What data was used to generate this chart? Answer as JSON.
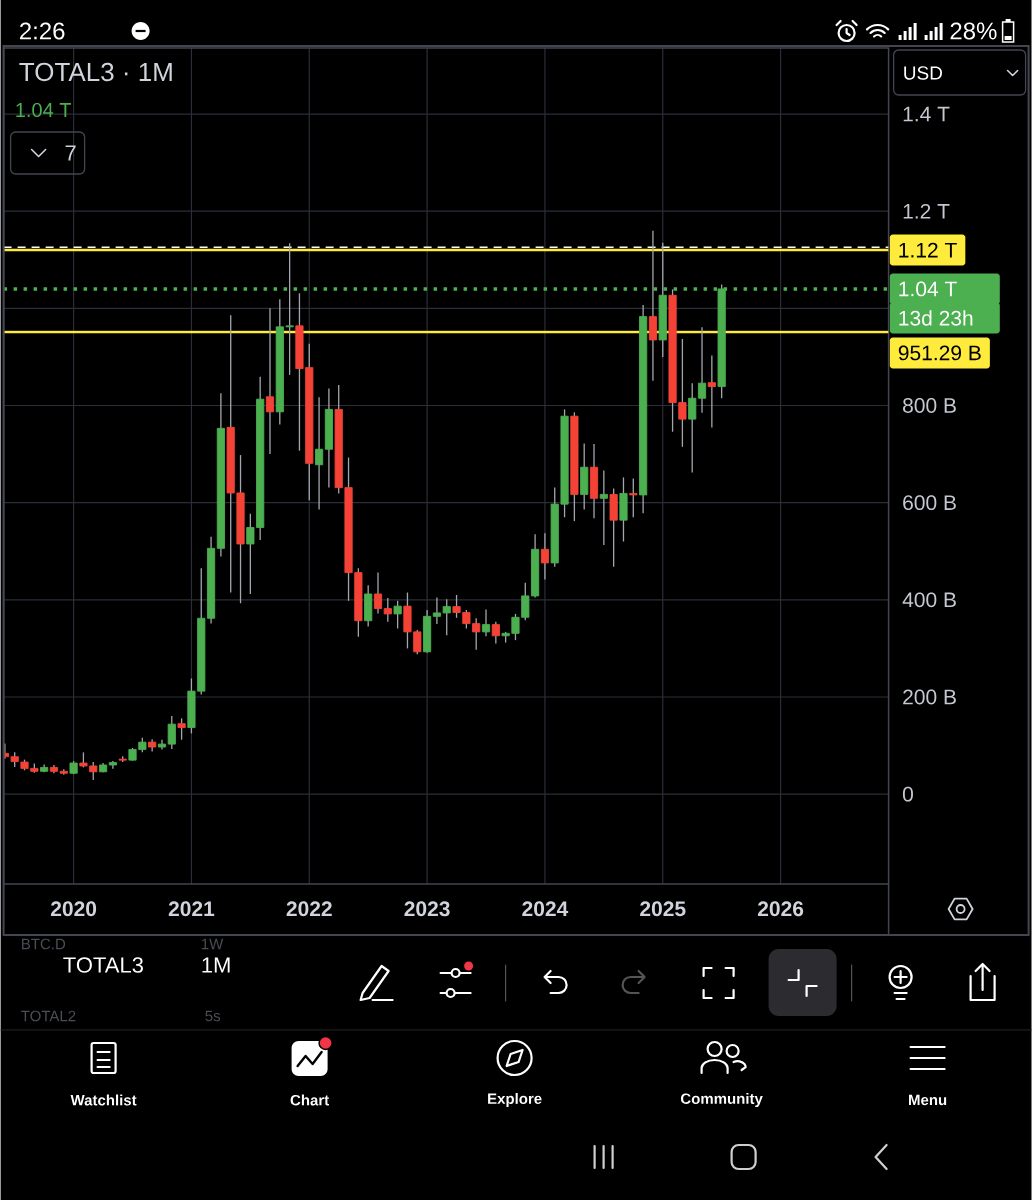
{
  "chart_data": {
    "type": "candlestick",
    "title": "TOTAL3 · 1M",
    "annotations": [
      "2:26",
      "28%",
      "1.04 T",
      "7",
      "USD",
      "13d 23h",
      "BTC.D",
      "1W",
      "TOTAL3",
      "1M",
      "TOTAL2",
      "5s",
      "Watchlist",
      "Chart",
      "Explore",
      "Community",
      "Menu"
    ],
    "x": [
      "2019-06",
      "2019-07",
      "2019-08",
      "2019-09",
      "2019-10",
      "2019-11",
      "2019-12",
      "2020-01",
      "2020-02",
      "2020-03",
      "2020-04",
      "2020-05",
      "2020-06",
      "2020-07",
      "2020-08",
      "2020-09",
      "2020-10",
      "2020-11",
      "2020-12",
      "2021-01",
      "2021-02",
      "2021-03",
      "2021-04",
      "2021-05",
      "2021-06",
      "2021-07",
      "2021-08",
      "2021-09",
      "2021-10",
      "2021-11",
      "2021-12",
      "2022-01",
      "2022-02",
      "2022-03",
      "2022-04",
      "2022-05",
      "2022-06",
      "2022-07",
      "2022-08",
      "2022-09",
      "2022-10",
      "2022-11",
      "2022-12",
      "2023-01",
      "2023-02",
      "2023-03",
      "2023-04",
      "2023-05",
      "2023-06",
      "2023-07",
      "2023-08",
      "2023-09",
      "2023-10",
      "2023-11",
      "2023-12",
      "2024-01",
      "2024-02",
      "2024-03",
      "2024-04",
      "2024-05",
      "2024-06",
      "2024-07",
      "2024-08",
      "2024-09",
      "2024-10",
      "2024-11",
      "2024-12",
      "2025-01",
      "2025-02",
      "2025-03",
      "2025-04",
      "2025-05",
      "2025-06",
      "2025-07"
    ],
    "ohlc": [
      [
        84000000000.0,
        104000000000.0,
        73000000000.0,
        77000000000.0
      ],
      [
        77000000000.0,
        86000000000.0,
        56000000000.0,
        67000000000.0
      ],
      [
        66000000000.0,
        71000000000.0,
        49000000000.0,
        53000000000.0
      ],
      [
        53000000000.0,
        63000000000.0,
        44000000000.0,
        47000000000.0
      ],
      [
        47000000000.0,
        61000000000.0,
        45000000000.0,
        55000000000.0
      ],
      [
        55000000000.0,
        60000000000.0,
        43000000000.0,
        47000000000.0
      ],
      [
        47000000000.0,
        51000000000.0,
        40000000000.0,
        43000000000.0
      ],
      [
        43000000000.0,
        68000000000.0,
        41000000000.0,
        64000000000.0
      ],
      [
        64000000000.0,
        86000000000.0,
        55000000000.0,
        58000000000.0
      ],
      [
        58000000000.0,
        66000000000.0,
        29000000000.0,
        46000000000.0
      ],
      [
        46000000000.0,
        64000000000.0,
        45000000000.0,
        60000000000.0
      ],
      [
        60000000000.0,
        68000000000.0,
        52000000000.0,
        65000000000.0
      ],
      [
        72000000000.0,
        78000000000.0,
        66000000000.0,
        70000000000.0
      ],
      [
        70000000000.0,
        95000000000.0,
        69000000000.0,
        92000000000.0
      ],
      [
        92000000000.0,
        116000000000.0,
        86000000000.0,
        107000000000.0
      ],
      [
        107000000000.0,
        113000000000.0,
        88000000000.0,
        97000000000.0
      ],
      [
        97000000000.0,
        112000000000.0,
        92000000000.0,
        103000000000.0
      ],
      [
        103000000000.0,
        161000000000.0,
        93000000000.0,
        144000000000.0
      ],
      [
        145000000000.0,
        156000000000.0,
        112000000000.0,
        137000000000.0
      ],
      [
        137000000000.0,
        238000000000.0,
        125000000000.0,
        212000000000.0
      ],
      [
        212000000000.0,
        465000000000.0,
        205000000000.0,
        362000000000.0
      ],
      [
        362000000000.0,
        530000000000.0,
        351000000000.0,
        506000000000.0
      ],
      [
        506000000000.0,
        825000000000.0,
        489000000000.0,
        753000000000.0
      ],
      [
        755000000000.0,
        986000000000.0,
        415000000000.0,
        620000000000.0
      ],
      [
        620000000000.0,
        698000000000.0,
        393000000000.0,
        515000000000.0
      ],
      [
        515000000000.0,
        577000000000.0,
        412000000000.0,
        549000000000.0
      ],
      [
        549000000000.0,
        859000000000.0,
        523000000000.0,
        813000000000.0
      ],
      [
        818000000000.0,
        1000000000000.0,
        700000000000.0,
        787000000000.0
      ],
      [
        787000000000.0,
        1019000000000.0,
        761000000000.0,
        962000000000.0
      ],
      [
        962000000000.0,
        1134000000000.0,
        863000000000.0,
        964000000000.0
      ],
      [
        964000000000.0,
        1031000000000.0,
        707000000000.0,
        876000000000.0
      ],
      [
        878000000000.0,
        927000000000.0,
        605000000000.0,
        681000000000.0
      ],
      [
        678000000000.0,
        817000000000.0,
        586000000000.0,
        710000000000.0
      ],
      [
        710000000000.0,
        835000000000.0,
        631000000000.0,
        792000000000.0
      ],
      [
        792000000000.0,
        842000000000.0,
        619000000000.0,
        631000000000.0
      ],
      [
        631000000000.0,
        693000000000.0,
        398000000000.0,
        456000000000.0
      ],
      [
        456000000000.0,
        465000000000.0,
        324000000000.0,
        357000000000.0
      ],
      [
        357000000000.0,
        430000000000.0,
        345000000000.0,
        412000000000.0
      ],
      [
        412000000000.0,
        456000000000.0,
        372000000000.0,
        382000000000.0
      ],
      [
        382000000000.0,
        404000000000.0,
        355000000000.0,
        371000000000.0
      ],
      [
        371000000000.0,
        398000000000.0,
        341000000000.0,
        387000000000.0
      ],
      [
        387000000000.0,
        415000000000.0,
        300000000000.0,
        334000000000.0
      ],
      [
        334000000000.0,
        338000000000.0,
        288000000000.0,
        293000000000.0
      ],
      [
        293000000000.0,
        379000000000.0,
        291000000000.0,
        366000000000.0
      ],
      [
        366000000000.0,
        405000000000.0,
        350000000000.0,
        373000000000.0
      ],
      [
        373000000000.0,
        401000000000.0,
        327000000000.0,
        386000000000.0
      ],
      [
        386000000000.0,
        410000000000.0,
        363000000000.0,
        374000000000.0
      ],
      [
        374000000000.0,
        379000000000.0,
        341000000000.0,
        351000000000.0
      ],
      [
        351000000000.0,
        362000000000.0,
        297000000000.0,
        334000000000.0
      ],
      [
        334000000000.0,
        380000000000.0,
        325000000000.0,
        349000000000.0
      ],
      [
        349000000000.0,
        355000000000.0,
        310000000000.0,
        326000000000.0
      ],
      [
        326000000000.0,
        334000000000.0,
        312000000000.0,
        331000000000.0
      ],
      [
        331000000000.0,
        371000000000.0,
        317000000000.0,
        364000000000.0
      ],
      [
        364000000000.0,
        435000000000.0,
        358000000000.0,
        408000000000.0
      ],
      [
        408000000000.0,
        535000000000.0,
        405000000000.0,
        504000000000.0
      ],
      [
        504000000000.0,
        537000000000.0,
        442000000000.0,
        476000000000.0
      ],
      [
        476000000000.0,
        631000000000.0,
        468000000000.0,
        597000000000.0
      ],
      [
        597000000000.0,
        792000000000.0,
        570000000000.0,
        778000000000.0
      ],
      [
        778000000000.0,
        786000000000.0,
        562000000000.0,
        617000000000.0
      ],
      [
        617000000000.0,
        722000000000.0,
        586000000000.0,
        673000000000.0
      ],
      [
        673000000000.0,
        721000000000.0,
        568000000000.0,
        609000000000.0
      ],
      [
        609000000000.0,
        666000000000.0,
        513000000000.0,
        617000000000.0
      ],
      [
        617000000000.0,
        629000000000.0,
        468000000000.0,
        564000000000.0
      ],
      [
        564000000000.0,
        652000000000.0,
        520000000000.0,
        619000000000.0
      ],
      [
        619000000000.0,
        650000000000.0,
        570000000000.0,
        616000000000.0
      ],
      [
        616000000000.0,
        1007000000000.0,
        578000000000.0,
        983000000000.0
      ],
      [
        983000000000.0,
        1160000000000.0,
        851000000000.0,
        935000000000.0
      ],
      [
        935000000000.0,
        1135000000000.0,
        900000000000.0,
        1027000000000.0
      ],
      [
        1027000000000.0,
        1039000000000.0,
        746000000000.0,
        806000000000.0
      ],
      [
        806000000000.0,
        937000000000.0,
        715000000000.0,
        772000000000.0
      ],
      [
        772000000000.0,
        846000000000.0,
        662000000000.0,
        815000000000.0
      ],
      [
        815000000000.0,
        961000000000.0,
        785000000000.0,
        846000000000.0
      ],
      [
        847000000000.0,
        903000000000.0,
        755000000000.0,
        839000000000.0
      ],
      [
        839000000000.0,
        1049000000000.0,
        815000000000.0,
        1040000000000.0
      ]
    ],
    "colors": [
      "#f44336",
      "#f44336",
      "#f44336",
      "#f44336",
      "#4caf50",
      "#f44336",
      "#f44336",
      "#4caf50",
      "#f44336",
      "#f44336",
      "#4caf50",
      "#4caf50",
      "#f44336",
      "#4caf50",
      "#4caf50",
      "#f44336",
      "#4caf50",
      "#4caf50",
      "#f44336",
      "#4caf50",
      "#4caf50",
      "#4caf50",
      "#4caf50",
      "#f44336",
      "#f44336",
      "#4caf50",
      "#4caf50",
      "#f44336",
      "#4caf50",
      "#4caf50",
      "#f44336",
      "#f44336",
      "#4caf50",
      "#4caf50",
      "#f44336",
      "#f44336",
      "#f44336",
      "#4caf50",
      "#f44336",
      "#f44336",
      "#4caf50",
      "#f44336",
      "#f44336",
      "#4caf50",
      "#4caf50",
      "#4caf50",
      "#f44336",
      "#f44336",
      "#f44336",
      "#4caf50",
      "#f44336",
      "#4caf50",
      "#4caf50",
      "#4caf50",
      "#4caf50",
      "#f44336",
      "#4caf50",
      "#4caf50",
      "#f44336",
      "#4caf50",
      "#f44336",
      "#4caf50",
      "#f44336",
      "#4caf50",
      "#f44336",
      "#4caf50",
      "#f44336",
      "#4caf50",
      "#f44336",
      "#f44336",
      "#4caf50",
      "#4caf50",
      "#f44336",
      "#4caf50"
    ],
    "xlim": [
      "2019-05-28",
      "2026-12-01"
    ],
    "xticks": [
      "2020",
      "2021",
      "2022",
      "2023",
      "2024",
      "2025",
      "2026"
    ],
    "ylim": [
      -185000000000.0,
      1536000000000.0
    ],
    "yticks": [
      0,
      {
        "value": 200000000000.0,
        "label": "200 B"
      },
      {
        "value": 400000000000.0,
        "label": "400 B"
      },
      {
        "value": 600000000000.0,
        "label": "600 B"
      },
      {
        "value": 800000000000.0,
        "label": "800 B"
      },
      {
        "value": 1000000000000.0,
        "label": null
      },
      {
        "value": 1200000000000.0,
        "label": "1.2 T"
      },
      {
        "value": 1400000000000.0,
        "label": "1.4 T"
      }
    ],
    "grid": true,
    "ref_lines": [
      {
        "axis": "y",
        "value": 1126000000000.0,
        "color": "#ffffff",
        "line_style": "dashed"
      },
      {
        "axis": "y",
        "value": 1120000000000.0,
        "label": "1.12 T",
        "color": "#ffeb3b",
        "line_style": "solid"
      },
      {
        "axis": "y",
        "value": 1040000000000.0,
        "label": "1.04 T",
        "color": "#4caf50",
        "line_style": "dotted"
      },
      {
        "axis": "y",
        "value": 951290000000.0,
        "label": "951.29 B",
        "color": "#ffeb3b",
        "line_style": "solid"
      }
    ]
  }
}
